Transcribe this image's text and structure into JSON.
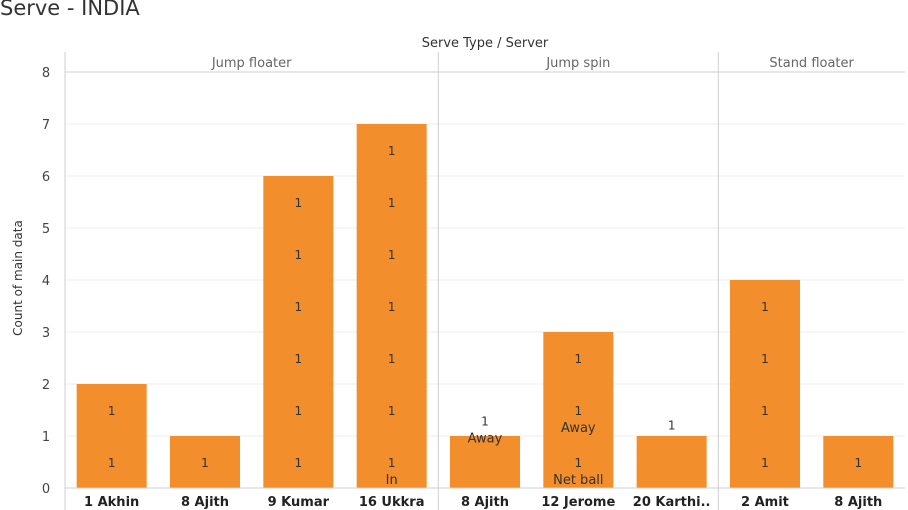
{
  "page_title": "Serve - INDIA",
  "chart_data": {
    "type": "bar",
    "title": "Serve - INDIA",
    "header": "Serve Type / Server",
    "ylabel": "Count of main data",
    "ylim": [
      0,
      8
    ],
    "yticks": [
      0,
      1,
      2,
      3,
      4,
      5,
      6,
      7,
      8
    ],
    "bar_color": "#F28E2B",
    "groups": [
      {
        "name": "Jump floater",
        "bars": [
          {
            "server": "1 Akhin",
            "value": 2,
            "labels": [
              {
                "y": 0.5,
                "lines": [
                  "1"
                ]
              },
              {
                "y": 1.5,
                "lines": [
                  "1"
                ]
              }
            ]
          },
          {
            "server": "8 Ajith",
            "value": 1,
            "labels": [
              {
                "y": 0.5,
                "lines": [
                  "1"
                ]
              }
            ]
          },
          {
            "server": "9 Kumar",
            "value": 6,
            "labels": [
              {
                "y": 0.5,
                "lines": [
                  "1"
                ]
              },
              {
                "y": 1.5,
                "lines": [
                  "1"
                ]
              },
              {
                "y": 2.5,
                "lines": [
                  "1"
                ]
              },
              {
                "y": 3.5,
                "lines": [
                  "1"
                ]
              },
              {
                "y": 4.5,
                "lines": [
                  "1"
                ]
              },
              {
                "y": 5.5,
                "lines": [
                  "1"
                ]
              }
            ]
          },
          {
            "server": "16 Ukkra",
            "value": 7,
            "labels": [
              {
                "y": 0.5,
                "lines": [
                  "1",
                  "In"
                ]
              },
              {
                "y": 1.5,
                "lines": [
                  "1"
                ]
              },
              {
                "y": 2.5,
                "lines": [
                  "1"
                ]
              },
              {
                "y": 3.5,
                "lines": [
                  "1"
                ]
              },
              {
                "y": 4.5,
                "lines": [
                  "1"
                ]
              },
              {
                "y": 5.5,
                "lines": [
                  "1"
                ]
              },
              {
                "y": 6.5,
                "lines": [
                  "1"
                ]
              }
            ]
          }
        ]
      },
      {
        "name": "Jump spin",
        "bars": [
          {
            "server": "8 Ajith",
            "value": 1,
            "labels": [
              {
                "y": 1.3,
                "lines": [
                  "1",
                  "Away"
                ]
              }
            ]
          },
          {
            "server": "12 Jerome",
            "value": 3,
            "labels": [
              {
                "y": 0.5,
                "lines": [
                  "1",
                  "Net ball"
                ]
              },
              {
                "y": 1.5,
                "lines": [
                  "1",
                  "Away"
                ]
              },
              {
                "y": 2.5,
                "lines": [
                  "1"
                ]
              }
            ]
          },
          {
            "server": "20 Karthi..",
            "value": 1,
            "labels": [
              {
                "y": 1.22,
                "lines": [
                  "1"
                ]
              }
            ]
          }
        ]
      },
      {
        "name": "Stand floater",
        "bars": [
          {
            "server": "2 Amit",
            "value": 4,
            "labels": [
              {
                "y": 0.5,
                "lines": [
                  "1"
                ]
              },
              {
                "y": 1.5,
                "lines": [
                  "1"
                ]
              },
              {
                "y": 2.5,
                "lines": [
                  "1"
                ]
              },
              {
                "y": 3.5,
                "lines": [
                  "1"
                ]
              }
            ]
          },
          {
            "server": "8 Ajith",
            "value": 1,
            "labels": [
              {
                "y": 0.5,
                "lines": [
                  "1"
                ]
              }
            ]
          }
        ]
      }
    ]
  }
}
